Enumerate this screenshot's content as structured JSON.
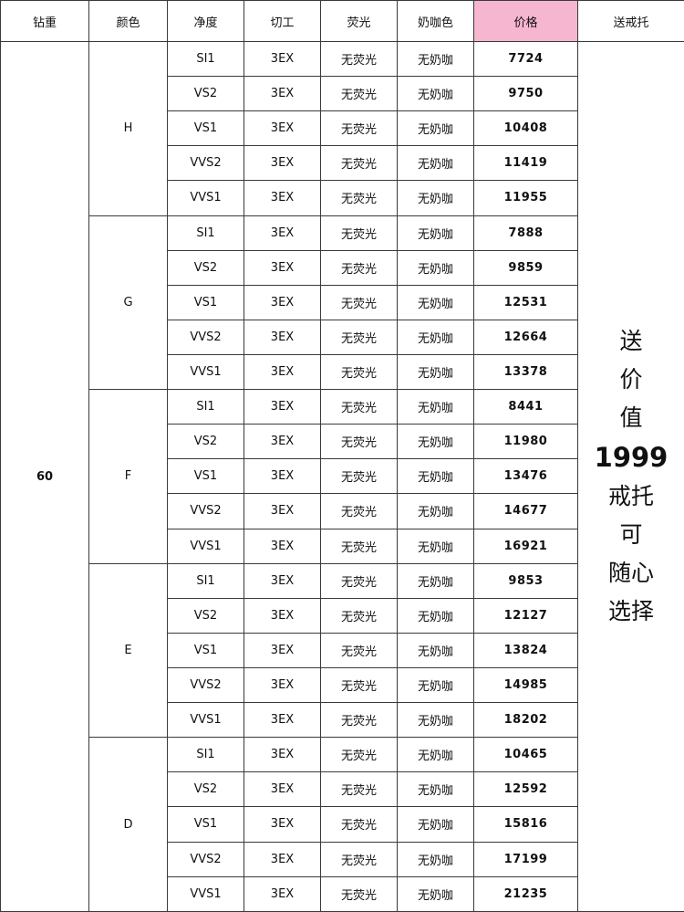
{
  "headers": [
    "钻重",
    "颜色",
    "净度",
    "切工",
    "荧光",
    "奶咖色",
    "价格",
    "送戒托"
  ],
  "weight": "60",
  "gift": {
    "lines_top": [
      "送",
      "价",
      "值"
    ],
    "value": "1999",
    "lines_bottom": [
      "戒托",
      "可",
      "随心",
      "选择"
    ]
  },
  "colors": {
    "H": "#f8cf98",
    "G": "#fcf9a6",
    "F": "#d7f9cf",
    "E": "#93fdfc",
    "D": "#9bd0f6",
    "weight_bg": "#f8b5b7",
    "price_header_bg": "#f7b6cf"
  },
  "groups": [
    {
      "color": "H",
      "rows": [
        {
          "clarity": "SI1",
          "cut": "3EX",
          "fluorescence": "无荧光",
          "milky": "无奶咖",
          "price": "7724"
        },
        {
          "clarity": "VS2",
          "cut": "3EX",
          "fluorescence": "无荧光",
          "milky": "无奶咖",
          "price": "9750"
        },
        {
          "clarity": "VS1",
          "cut": "3EX",
          "fluorescence": "无荧光",
          "milky": "无奶咖",
          "price": "10408"
        },
        {
          "clarity": "VVS2",
          "cut": "3EX",
          "fluorescence": "无荧光",
          "milky": "无奶咖",
          "price": "11419"
        },
        {
          "clarity": "VVS1",
          "cut": "3EX",
          "fluorescence": "无荧光",
          "milky": "无奶咖",
          "price": "11955"
        }
      ]
    },
    {
      "color": "G",
      "rows": [
        {
          "clarity": "SI1",
          "cut": "3EX",
          "fluorescence": "无荧光",
          "milky": "无奶咖",
          "price": "7888"
        },
        {
          "clarity": "VS2",
          "cut": "3EX",
          "fluorescence": "无荧光",
          "milky": "无奶咖",
          "price": "9859"
        },
        {
          "clarity": "VS1",
          "cut": "3EX",
          "fluorescence": "无荧光",
          "milky": "无奶咖",
          "price": "12531"
        },
        {
          "clarity": "VVS2",
          "cut": "3EX",
          "fluorescence": "无荧光",
          "milky": "无奶咖",
          "price": "12664"
        },
        {
          "clarity": "VVS1",
          "cut": "3EX",
          "fluorescence": "无荧光",
          "milky": "无奶咖",
          "price": "13378"
        }
      ]
    },
    {
      "color": "F",
      "rows": [
        {
          "clarity": "SI1",
          "cut": "3EX",
          "fluorescence": "无荧光",
          "milky": "无奶咖",
          "price": "8441"
        },
        {
          "clarity": "VS2",
          "cut": "3EX",
          "fluorescence": "无荧光",
          "milky": "无奶咖",
          "price": "11980"
        },
        {
          "clarity": "VS1",
          "cut": "3EX",
          "fluorescence": "无荧光",
          "milky": "无奶咖",
          "price": "13476"
        },
        {
          "clarity": "VVS2",
          "cut": "3EX",
          "fluorescence": "无荧光",
          "milky": "无奶咖",
          "price": "14677"
        },
        {
          "clarity": "VVS1",
          "cut": "3EX",
          "fluorescence": "无荧光",
          "milky": "无奶咖",
          "price": "16921"
        }
      ]
    },
    {
      "color": "E",
      "rows": [
        {
          "clarity": "SI1",
          "cut": "3EX",
          "fluorescence": "无荧光",
          "milky": "无奶咖",
          "price": "9853"
        },
        {
          "clarity": "VS2",
          "cut": "3EX",
          "fluorescence": "无荧光",
          "milky": "无奶咖",
          "price": "12127"
        },
        {
          "clarity": "VS1",
          "cut": "3EX",
          "fluorescence": "无荧光",
          "milky": "无奶咖",
          "price": "13824"
        },
        {
          "clarity": "VVS2",
          "cut": "3EX",
          "fluorescence": "无荧光",
          "milky": "无奶咖",
          "price": "14985"
        },
        {
          "clarity": "VVS1",
          "cut": "3EX",
          "fluorescence": "无荧光",
          "milky": "无奶咖",
          "price": "18202"
        }
      ]
    },
    {
      "color": "D",
      "rows": [
        {
          "clarity": "SI1",
          "cut": "3EX",
          "fluorescence": "无荧光",
          "milky": "无奶咖",
          "price": "10465"
        },
        {
          "clarity": "VS2",
          "cut": "3EX",
          "fluorescence": "无荧光",
          "milky": "无奶咖",
          "price": "12592"
        },
        {
          "clarity": "VS1",
          "cut": "3EX",
          "fluorescence": "无荧光",
          "milky": "无奶咖",
          "price": "15816"
        },
        {
          "clarity": "VVS2",
          "cut": "3EX",
          "fluorescence": "无荧光",
          "milky": "无奶咖",
          "price": "17199"
        },
        {
          "clarity": "VVS1",
          "cut": "3EX",
          "fluorescence": "无荧光",
          "milky": "无奶咖",
          "price": "21235"
        }
      ]
    }
  ]
}
